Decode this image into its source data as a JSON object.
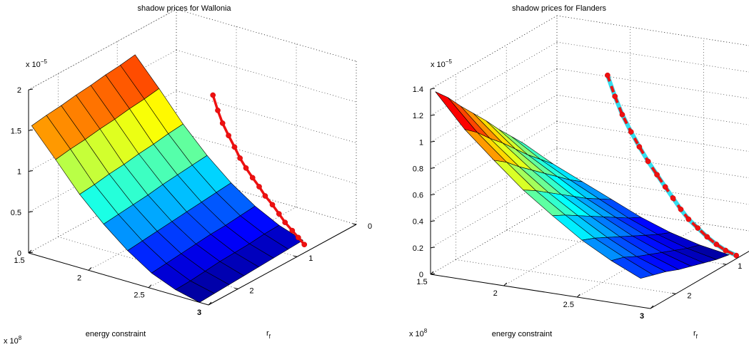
{
  "chart_data": [
    {
      "type": "surface3d",
      "title": "shadow prices for Wallonia",
      "xlabel": "energy constraint",
      "ylabel": "r",
      "ylabel_sub": "f",
      "x_multiplier": "x 10",
      "x_multiplier_exp": "8",
      "z_multiplier": "x 10",
      "z_multiplier_exp": "−5",
      "x_ticks": [
        "1.5",
        "2",
        "2.5",
        "3"
      ],
      "y_ticks": [
        "0",
        "1",
        "2"
      ],
      "z_ticks": [
        "0",
        "0.5",
        "1",
        "1.5",
        "2"
      ],
      "xlim": [
        1.5,
        3
      ],
      "ylim": [
        0,
        2.5
      ],
      "zlim": [
        0,
        2
      ],
      "grid": true,
      "surface": {
        "x": [
          1.55,
          1.75,
          1.95,
          2.15,
          2.35,
          2.55,
          2.75,
          2.95
        ],
        "y": [
          0.8,
          1.05,
          1.3,
          1.55,
          1.8,
          2.05,
          2.3,
          2.55
        ],
        "z": [
          [
            1.78,
            1.45,
            1.1,
            0.8,
            0.55,
            0.35,
            0.2,
            0.1
          ],
          [
            1.75,
            1.42,
            1.08,
            0.78,
            0.53,
            0.33,
            0.19,
            0.09
          ],
          [
            1.73,
            1.4,
            1.05,
            0.76,
            0.51,
            0.31,
            0.17,
            0.08
          ],
          [
            1.7,
            1.37,
            1.03,
            0.74,
            0.49,
            0.3,
            0.16,
            0.07
          ],
          [
            1.68,
            1.35,
            1.0,
            0.71,
            0.47,
            0.28,
            0.15,
            0.06
          ],
          [
            1.65,
            1.32,
            0.98,
            0.69,
            0.45,
            0.26,
            0.13,
            0.05
          ],
          [
            1.63,
            1.3,
            0.95,
            0.67,
            0.43,
            0.24,
            0.11,
            0.04
          ],
          [
            1.6,
            1.27,
            0.93,
            0.65,
            0.41,
            0.22,
            0.1,
            0.03
          ]
        ]
      },
      "path_line": {
        "style": "solid",
        "color": "#ee1111",
        "x": [
          2.15,
          2.19,
          2.23,
          2.28,
          2.33,
          2.38,
          2.43,
          2.49,
          2.55,
          2.61,
          2.68,
          2.75,
          2.82,
          2.9,
          2.97,
          3.04
        ],
        "y": [
          0.7,
          0.7,
          0.7,
          0.7,
          0.7,
          0.71,
          0.71,
          0.72,
          0.73,
          0.75,
          0.77,
          0.8,
          0.84,
          0.88,
          0.92,
          0.96
        ],
        "z": [
          1.5,
          1.33,
          1.19,
          1.06,
          0.94,
          0.83,
          0.73,
          0.64,
          0.56,
          0.48,
          0.41,
          0.34,
          0.28,
          0.23,
          0.19,
          0.15
        ]
      }
    },
    {
      "type": "surface3d",
      "title": "shadow prices for Flanders",
      "xlabel": "energy constraint",
      "ylabel": "r",
      "ylabel_sub": "f",
      "x_multiplier": "x 10",
      "x_multiplier_exp": "8",
      "z_multiplier": "x 10",
      "z_multiplier_exp": "−5",
      "x_ticks": [
        "1.5",
        "2",
        "2.5",
        "3"
      ],
      "y_ticks": [
        "0",
        "1",
        "2"
      ],
      "z_ticks": [
        "0",
        "0.2",
        "0.4",
        "0.6",
        "0.8",
        "1",
        "1.2",
        "1.4"
      ],
      "xlim": [
        1.5,
        3
      ],
      "ylim": [
        0,
        2.5
      ],
      "zlim": [
        0,
        1.4
      ],
      "grid": true,
      "surface": {
        "x": [
          1.55,
          1.75,
          1.95,
          2.15,
          2.35,
          2.55,
          2.75,
          2.95
        ],
        "y": [
          0.8,
          1.05,
          1.3,
          1.55,
          1.8,
          2.05,
          2.3,
          2.55
        ],
        "z": [
          [
            0.62,
            0.5,
            0.4,
            0.3,
            0.2,
            0.12,
            0.06,
            0.02
          ],
          [
            0.73,
            0.59,
            0.47,
            0.36,
            0.25,
            0.16,
            0.09,
            0.04
          ],
          [
            0.84,
            0.68,
            0.55,
            0.42,
            0.31,
            0.21,
            0.13,
            0.07
          ],
          [
            0.96,
            0.78,
            0.63,
            0.49,
            0.37,
            0.26,
            0.17,
            0.1
          ],
          [
            1.07,
            0.88,
            0.71,
            0.56,
            0.43,
            0.31,
            0.21,
            0.13
          ],
          [
            1.18,
            0.97,
            0.79,
            0.63,
            0.49,
            0.36,
            0.25,
            0.17
          ],
          [
            1.3,
            1.07,
            0.88,
            0.7,
            0.55,
            0.41,
            0.3,
            0.2
          ],
          [
            1.4,
            1.15,
            0.95,
            0.76,
            0.6,
            0.45,
            0.33,
            0.23
          ]
        ]
      },
      "path_line": {
        "style": "dashed",
        "color": "#ee1111",
        "halo_color": "#33ddee",
        "x": [
          2.08,
          2.13,
          2.18,
          2.24,
          2.3,
          2.36,
          2.42,
          2.48,
          2.54,
          2.6,
          2.66,
          2.73,
          2.8,
          2.87,
          2.94,
          3.02
        ],
        "y": [
          0.68,
          0.68,
          0.68,
          0.68,
          0.69,
          0.69,
          0.69,
          0.7,
          0.72,
          0.74,
          0.76,
          0.78,
          0.8,
          0.82,
          0.84,
          0.86
        ],
        "z": [
          1.2,
          1.05,
          0.92,
          0.8,
          0.7,
          0.6,
          0.51,
          0.43,
          0.36,
          0.29,
          0.23,
          0.18,
          0.13,
          0.09,
          0.06,
          0.04
        ]
      }
    }
  ]
}
